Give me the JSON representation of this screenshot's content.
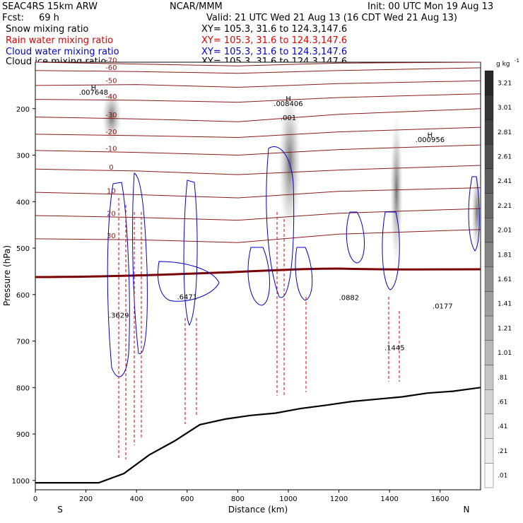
{
  "header": {
    "model": "SEAC4RS 15km ARW",
    "org": "NCAR/MMM",
    "init": "Init: 00 UTC Mon 19 Aug 13",
    "fcst_label": "Fcst:",
    "fcst_value": "69 h",
    "valid": "Valid: 21 UTC Wed 21 Aug 13 (16 CDT Wed 21 Aug 13)"
  },
  "fields": [
    {
      "label": "Snow mixing ratio",
      "xy": "XY= 105.3, 31.6 to 124.3,147.6",
      "color": "#000000"
    },
    {
      "label": "Rain water mixing ratio",
      "xy": "XY= 105.3, 31.6 to 124.3,147.6",
      "color": "#e00000"
    },
    {
      "label": "Cloud water mixing ratio",
      "xy": "XY= 105.3, 31.6 to 124.3,147.6",
      "color": "#0000cc"
    },
    {
      "label": "Cloud ice mixing ratio",
      "xy": "XY= 105.3, 31.6 to 124.3,147.6",
      "color": "#000000"
    }
  ],
  "chart_data": {
    "type": "contour cross-section",
    "xlabel": "Distance (km)",
    "ylabel": "Pressure (hPa)",
    "xlim": [
      0,
      1760
    ],
    "ylim": [
      1020,
      100
    ],
    "x_ticks": [
      0,
      200,
      400,
      600,
      800,
      1000,
      1200,
      1400,
      1600
    ],
    "y_ticks": [
      200,
      300,
      400,
      500,
      600,
      700,
      800,
      900,
      1000
    ],
    "x_end_labels": {
      "left": "S",
      "right": "N"
    },
    "colorbar": {
      "unit": "g kg",
      "unit_exp": "-1",
      "levels": [
        "3.21",
        "3.01",
        "2.81",
        "2.61",
        "2.41",
        "2.21",
        "2.01",
        "1.81",
        "1.61",
        "1.41",
        "1.21",
        "1.01",
        ".81",
        ".61",
        ".41",
        ".21",
        ".01"
      ]
    },
    "temperature_contours": [
      {
        "t": -70,
        "p": [
          [
            0,
            100
          ],
          [
            400,
            104
          ],
          [
            800,
            108
          ],
          [
            1200,
            102
          ],
          [
            1760,
            100
          ]
        ]
      },
      {
        "t": -60,
        "p": [
          [
            0,
            118
          ],
          [
            400,
            120
          ],
          [
            800,
            124
          ],
          [
            1200,
            118
          ],
          [
            1760,
            112
          ]
        ]
      },
      {
        "t": -50,
        "p": [
          [
            0,
            150
          ],
          [
            400,
            148
          ],
          [
            800,
            154
          ],
          [
            1200,
            146
          ],
          [
            1760,
            140
          ]
        ]
      },
      {
        "t": -40,
        "p": [
          [
            0,
            180
          ],
          [
            400,
            182
          ],
          [
            800,
            186
          ],
          [
            1200,
            176
          ],
          [
            1760,
            168
          ]
        ]
      },
      {
        "t": -30,
        "p": [
          [
            0,
            218
          ],
          [
            400,
            222
          ],
          [
            800,
            228
          ],
          [
            1200,
            212
          ],
          [
            1760,
            200
          ]
        ]
      },
      {
        "t": -20,
        "p": [
          [
            0,
            255
          ],
          [
            400,
            258
          ],
          [
            800,
            262
          ],
          [
            1200,
            250
          ],
          [
            1760,
            240
          ]
        ]
      },
      {
        "t": -10,
        "p": [
          [
            0,
            290
          ],
          [
            400,
            294
          ],
          [
            800,
            300
          ],
          [
            1200,
            288
          ],
          [
            1760,
            278
          ]
        ]
      },
      {
        "t": 0,
        "p": [
          [
            0,
            330
          ],
          [
            400,
            334
          ],
          [
            800,
            342
          ],
          [
            1200,
            332
          ],
          [
            1760,
            322
          ]
        ]
      },
      {
        "t": 10,
        "p": [
          [
            0,
            380
          ],
          [
            400,
            385
          ],
          [
            800,
            392
          ],
          [
            1200,
            378
          ],
          [
            1760,
            370
          ]
        ]
      },
      {
        "t": 20,
        "p": [
          [
            0,
            430
          ],
          [
            400,
            434
          ],
          [
            800,
            440
          ],
          [
            1200,
            425
          ],
          [
            1760,
            415
          ]
        ]
      },
      {
        "t": 30,
        "p": [
          [
            0,
            480
          ],
          [
            400,
            482
          ],
          [
            800,
            488
          ],
          [
            1200,
            470
          ],
          [
            1760,
            460
          ]
        ]
      }
    ],
    "terrain": [
      [
        0,
        1005
      ],
      [
        250,
        1005
      ],
      [
        350,
        985
      ],
      [
        450,
        945
      ],
      [
        550,
        915
      ],
      [
        650,
        880
      ],
      [
        750,
        868
      ],
      [
        850,
        860
      ],
      [
        950,
        855
      ],
      [
        1050,
        845
      ],
      [
        1150,
        838
      ],
      [
        1250,
        830
      ],
      [
        1350,
        825
      ],
      [
        1450,
        820
      ],
      [
        1550,
        812
      ],
      [
        1650,
        808
      ],
      [
        1760,
        800
      ]
    ],
    "annotations": [
      {
        "text": "H",
        "x": 230,
        "y": 160
      },
      {
        "text": ".007648",
        "x": 230,
        "y": 170
      },
      {
        "text": "H",
        "x": 1000,
        "y": 184
      },
      {
        "text": ".008406",
        "x": 1000,
        "y": 194
      },
      {
        "text": ".001",
        "x": 1000,
        "y": 225
      },
      {
        "text": "H",
        "x": 1560,
        "y": 262
      },
      {
        "text": ".000956",
        "x": 1560,
        "y": 272
      },
      {
        "text": ".3629",
        "x": 330,
        "y": 650
      },
      {
        "text": ".6471",
        "x": 600,
        "y": 610
      },
      {
        "text": ".0882",
        "x": 1240,
        "y": 612
      },
      {
        "text": ".0177",
        "x": 1610,
        "y": 630
      },
      {
        "text": ".1445",
        "x": 1420,
        "y": 720
      }
    ]
  }
}
